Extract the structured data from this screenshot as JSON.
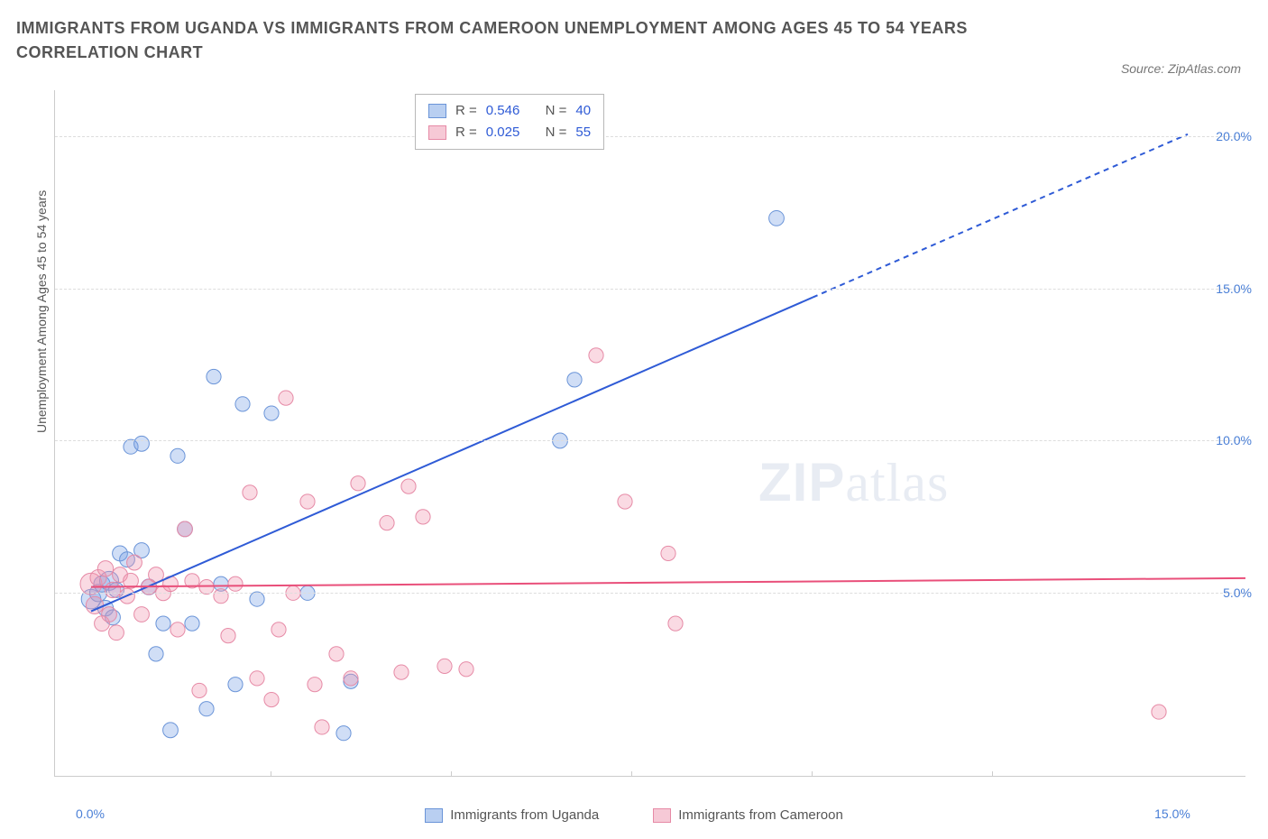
{
  "title": "IMMIGRANTS FROM UGANDA VS IMMIGRANTS FROM CAMEROON UNEMPLOYMENT AMONG AGES 45 TO 54 YEARS CORRELATION CHART",
  "source": "Source: ZipAtlas.com",
  "watermark_a": "ZIP",
  "watermark_b": "atlas",
  "y_axis": {
    "label": "Unemployment Among Ages 45 to 54 years",
    "ticks": [
      {
        "v": 5,
        "label": "5.0%"
      },
      {
        "v": 10,
        "label": "10.0%"
      },
      {
        "v": 15,
        "label": "15.0%"
      },
      {
        "v": 20,
        "label": "20.0%"
      }
    ],
    "label_fontsize": 14,
    "label_color": "#555555",
    "tick_color": "#4a7fd6"
  },
  "x_axis": {
    "ticks": [
      {
        "v": 0,
        "label": "0.0%"
      },
      {
        "v": 15,
        "label": "15.0%"
      }
    ],
    "marks": [
      2.5,
      5.0,
      7.5,
      10.0,
      12.5
    ],
    "tick_color": "#4a7fd6"
  },
  "plot": {
    "xlim": [
      -0.5,
      16
    ],
    "ylim": [
      -1,
      21.5
    ],
    "grid_color": "#dddddd",
    "background": "#ffffff",
    "axis_color": "#cccccc"
  },
  "series": [
    {
      "id": "uganda",
      "label": "Immigrants from Uganda",
      "fill": "rgba(120,160,230,0.35)",
      "stroke": "#6a94d8",
      "swatch_fill": "#b9cff1",
      "swatch_border": "#6a94d8",
      "trend": {
        "slope": 1.03,
        "intercept": 4.4,
        "color": "#2f5bd6",
        "width": 2,
        "solid_xmax": 10.0,
        "xmax": 15.2
      },
      "stats": {
        "R": "0.546",
        "N": "40"
      },
      "radius_min": 6,
      "radius_max": 12,
      "points": [
        {
          "x": 0.0,
          "y": 4.8,
          "s": 1.6
        },
        {
          "x": 0.1,
          "y": 5.0,
          "s": 1.2
        },
        {
          "x": 0.15,
          "y": 5.3,
          "s": 1.0
        },
        {
          "x": 0.2,
          "y": 4.5,
          "s": 0.9
        },
        {
          "x": 0.25,
          "y": 5.4,
          "s": 1.5
        },
        {
          "x": 0.3,
          "y": 4.2,
          "s": 0.8
        },
        {
          "x": 0.35,
          "y": 5.1,
          "s": 0.8
        },
        {
          "x": 0.4,
          "y": 6.3,
          "s": 0.8
        },
        {
          "x": 0.5,
          "y": 6.1,
          "s": 0.8
        },
        {
          "x": 0.55,
          "y": 9.8,
          "s": 0.7
        },
        {
          "x": 0.7,
          "y": 9.9,
          "s": 0.8
        },
        {
          "x": 0.7,
          "y": 6.4,
          "s": 0.8
        },
        {
          "x": 0.8,
          "y": 5.2,
          "s": 0.9
        },
        {
          "x": 0.9,
          "y": 3.0,
          "s": 0.7
        },
        {
          "x": 1.0,
          "y": 4.0,
          "s": 0.7
        },
        {
          "x": 1.1,
          "y": 0.5,
          "s": 0.8
        },
        {
          "x": 1.2,
          "y": 9.5,
          "s": 0.7
        },
        {
          "x": 1.3,
          "y": 7.1,
          "s": 0.8
        },
        {
          "x": 1.4,
          "y": 4.0,
          "s": 0.7
        },
        {
          "x": 1.6,
          "y": 1.2,
          "s": 0.7
        },
        {
          "x": 1.7,
          "y": 12.1,
          "s": 0.7
        },
        {
          "x": 1.8,
          "y": 5.3,
          "s": 0.7
        },
        {
          "x": 2.0,
          "y": 2.0,
          "s": 0.7
        },
        {
          "x": 2.1,
          "y": 11.2,
          "s": 0.7
        },
        {
          "x": 2.3,
          "y": 4.8,
          "s": 0.7
        },
        {
          "x": 2.5,
          "y": 10.9,
          "s": 0.7
        },
        {
          "x": 3.0,
          "y": 5.0,
          "s": 0.7
        },
        {
          "x": 3.5,
          "y": 0.4,
          "s": 0.7
        },
        {
          "x": 3.6,
          "y": 2.1,
          "s": 0.7
        },
        {
          "x": 6.5,
          "y": 10.0,
          "s": 0.8
        },
        {
          "x": 6.7,
          "y": 12.0,
          "s": 0.7
        },
        {
          "x": 9.5,
          "y": 17.3,
          "s": 0.8
        }
      ]
    },
    {
      "id": "cameroon",
      "label": "Immigrants from Cameroon",
      "fill": "rgba(240,150,175,0.35)",
      "stroke": "#e68aa6",
      "swatch_fill": "#f6c9d6",
      "swatch_border": "#e68aa6",
      "trend": {
        "slope": 0.018,
        "intercept": 5.2,
        "color": "#e94f7a",
        "width": 2,
        "solid_xmax": 16,
        "xmax": 16
      },
      "stats": {
        "R": "0.025",
        "N": "55"
      },
      "radius_min": 6,
      "radius_max": 12,
      "points": [
        {
          "x": 0.0,
          "y": 5.3,
          "s": 2.0
        },
        {
          "x": 0.05,
          "y": 4.6,
          "s": 1.2
        },
        {
          "x": 0.1,
          "y": 5.5,
          "s": 1.0
        },
        {
          "x": 0.15,
          "y": 4.0,
          "s": 0.8
        },
        {
          "x": 0.2,
          "y": 5.8,
          "s": 0.9
        },
        {
          "x": 0.25,
          "y": 4.3,
          "s": 0.8
        },
        {
          "x": 0.3,
          "y": 5.1,
          "s": 0.9
        },
        {
          "x": 0.35,
          "y": 3.7,
          "s": 0.8
        },
        {
          "x": 0.4,
          "y": 5.6,
          "s": 0.8
        },
        {
          "x": 0.5,
          "y": 4.9,
          "s": 0.8
        },
        {
          "x": 0.55,
          "y": 5.4,
          "s": 0.8
        },
        {
          "x": 0.6,
          "y": 6.0,
          "s": 0.8
        },
        {
          "x": 0.7,
          "y": 4.3,
          "s": 0.8
        },
        {
          "x": 0.8,
          "y": 5.2,
          "s": 0.8
        },
        {
          "x": 0.9,
          "y": 5.6,
          "s": 0.8
        },
        {
          "x": 1.0,
          "y": 5.0,
          "s": 0.8
        },
        {
          "x": 1.1,
          "y": 5.3,
          "s": 0.8
        },
        {
          "x": 1.2,
          "y": 3.8,
          "s": 0.7
        },
        {
          "x": 1.3,
          "y": 7.1,
          "s": 0.8
        },
        {
          "x": 1.4,
          "y": 5.4,
          "s": 0.7
        },
        {
          "x": 1.5,
          "y": 1.8,
          "s": 0.7
        },
        {
          "x": 1.6,
          "y": 5.2,
          "s": 0.7
        },
        {
          "x": 1.8,
          "y": 4.9,
          "s": 0.7
        },
        {
          "x": 1.9,
          "y": 3.6,
          "s": 0.7
        },
        {
          "x": 2.0,
          "y": 5.3,
          "s": 0.7
        },
        {
          "x": 2.2,
          "y": 8.3,
          "s": 0.7
        },
        {
          "x": 2.3,
          "y": 2.2,
          "s": 0.7
        },
        {
          "x": 2.5,
          "y": 1.5,
          "s": 0.7
        },
        {
          "x": 2.6,
          "y": 3.8,
          "s": 0.7
        },
        {
          "x": 2.7,
          "y": 11.4,
          "s": 0.7
        },
        {
          "x": 2.8,
          "y": 5.0,
          "s": 0.7
        },
        {
          "x": 3.0,
          "y": 8.0,
          "s": 0.7
        },
        {
          "x": 3.1,
          "y": 2.0,
          "s": 0.7
        },
        {
          "x": 3.2,
          "y": 0.6,
          "s": 0.7
        },
        {
          "x": 3.4,
          "y": 3.0,
          "s": 0.7
        },
        {
          "x": 3.6,
          "y": 2.2,
          "s": 0.7
        },
        {
          "x": 3.7,
          "y": 8.6,
          "s": 0.7
        },
        {
          "x": 4.1,
          "y": 7.3,
          "s": 0.7
        },
        {
          "x": 4.3,
          "y": 2.4,
          "s": 0.7
        },
        {
          "x": 4.4,
          "y": 8.5,
          "s": 0.7
        },
        {
          "x": 4.6,
          "y": 7.5,
          "s": 0.7
        },
        {
          "x": 4.9,
          "y": 2.6,
          "s": 0.7
        },
        {
          "x": 5.2,
          "y": 2.5,
          "s": 0.7
        },
        {
          "x": 7.0,
          "y": 12.8,
          "s": 0.7
        },
        {
          "x": 7.4,
          "y": 8.0,
          "s": 0.7
        },
        {
          "x": 8.0,
          "y": 6.3,
          "s": 0.7
        },
        {
          "x": 8.1,
          "y": 4.0,
          "s": 0.7
        },
        {
          "x": 14.8,
          "y": 1.1,
          "s": 0.7
        }
      ]
    }
  ],
  "stats_labels": {
    "R": "R =",
    "N": "N ="
  },
  "legend": {
    "items": [
      {
        "series": "uganda"
      },
      {
        "series": "cameroon"
      }
    ]
  }
}
